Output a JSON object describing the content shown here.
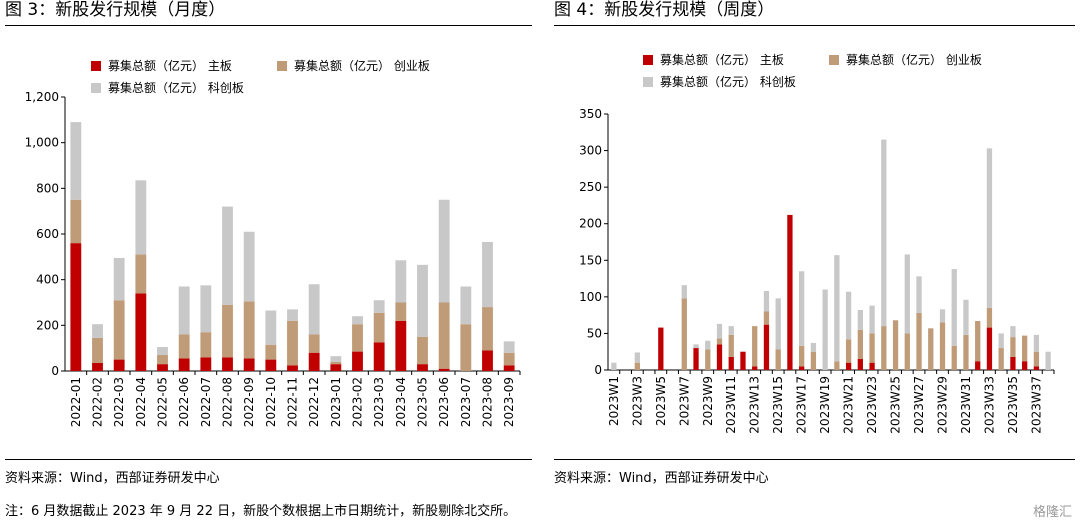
{
  "left": {
    "title": "图 3：新股发行规模（月度）",
    "source": "资料来源：Wind，西部证券研发中心"
  },
  "right": {
    "title": "图 4：新股发行规模（周度）",
    "source": "资料来源：Wind，西部证券研发中心"
  },
  "note": "注：6 月数据截止 2023 年 9 月 22 日，新股个数根据上市日期统计，新股剔除北交所。",
  "watermark": "格隆汇",
  "colors": {
    "main": "#C00000",
    "chinext": "#C09B77",
    "star": "#C8C8C8"
  },
  "chart_data": [
    {
      "type": "bar",
      "stacked": true,
      "categories": [
        "2022-01",
        "2022-02",
        "2022-03",
        "2022-04",
        "2022-05",
        "2022-06",
        "2022-07",
        "2022-08",
        "2022-09",
        "2022-10",
        "2022-11",
        "2022-12",
        "2023-01",
        "2023-02",
        "2023-03",
        "2023-04",
        "2023-05",
        "2023-06",
        "2023-07",
        "2023-08",
        "2023-09"
      ],
      "series": [
        {
          "name": "募集总额（亿元） 主板",
          "color": "#C00000",
          "values": [
            560,
            35,
            50,
            340,
            30,
            55,
            60,
            60,
            55,
            50,
            25,
            80,
            30,
            85,
            125,
            220,
            30,
            10,
            0,
            90,
            25
          ]
        },
        {
          "name": "募集总额（亿元） 创业板",
          "color": "#C09B77",
          "values": [
            190,
            110,
            260,
            170,
            40,
            105,
            110,
            230,
            250,
            65,
            195,
            80,
            10,
            120,
            130,
            80,
            120,
            290,
            205,
            190,
            55
          ]
        },
        {
          "name": "募集总额（亿元） 科创板",
          "color": "#C8C8C8",
          "values": [
            340,
            60,
            185,
            325,
            35,
            210,
            205,
            430,
            305,
            150,
            50,
            220,
            25,
            35,
            55,
            185,
            315,
            450,
            165,
            285,
            50
          ]
        }
      ],
      "ylim": [
        0,
        1200
      ],
      "yticks": [
        "0",
        "200",
        "400",
        "600",
        "800",
        "1,000",
        "1,200"
      ],
      "legend": "top"
    },
    {
      "type": "bar",
      "stacked": true,
      "categories": [
        "2023W1",
        "2023W2",
        "2023W3",
        "2023W4",
        "2023W5",
        "2023W6",
        "2023W7",
        "2023W8",
        "2023W9",
        "2023W10",
        "2023W11",
        "2023W12",
        "2023W13",
        "2023W14",
        "2023W15",
        "2023W16",
        "2023W17",
        "2023W18",
        "2023W19",
        "2023W20",
        "2023W21",
        "2023W22",
        "2023W23",
        "2023W24",
        "2023W25",
        "2023W26",
        "2023W27",
        "2023W28",
        "2023W29",
        "2023W30",
        "2023W31",
        "2023W32",
        "2023W33",
        "2023W34",
        "2023W35",
        "2023W36",
        "2023W37",
        "2023W38"
      ],
      "x_tick_labels": [
        "2023W1",
        "2023W3",
        "2023W5",
        "2023W7",
        "2023W9",
        "2023W11",
        "2023W13",
        "2023W15",
        "2023W17",
        "2023W19",
        "2023W21",
        "2023W23",
        "2023W25",
        "2023W27",
        "2023W29",
        "2023W31",
        "2023W33",
        "2023W35",
        "2023W37"
      ],
      "series": [
        {
          "name": "募集总额（亿元） 主板",
          "color": "#C00000",
          "values": [
            0,
            0,
            0,
            0,
            58,
            0,
            0,
            30,
            0,
            35,
            18,
            25,
            5,
            62,
            0,
            212,
            5,
            0,
            0,
            0,
            10,
            15,
            10,
            0,
            0,
            0,
            0,
            0,
            0,
            0,
            0,
            12,
            58,
            0,
            18,
            12,
            5,
            0
          ]
        },
        {
          "name": "募集总额（亿元） 创业板",
          "color": "#C09B77",
          "values": [
            0,
            0,
            10,
            0,
            0,
            0,
            98,
            0,
            28,
            8,
            30,
            0,
            55,
            18,
            28,
            0,
            28,
            25,
            0,
            12,
            32,
            40,
            40,
            60,
            68,
            50,
            78,
            57,
            65,
            33,
            48,
            55,
            27,
            30,
            27,
            35,
            20,
            0
          ]
        },
        {
          "name": "募集总额（亿元） 科创板",
          "color": "#C8C8C8",
          "values": [
            10,
            0,
            14,
            0,
            0,
            0,
            18,
            5,
            12,
            20,
            12,
            0,
            0,
            28,
            70,
            0,
            102,
            12,
            110,
            145,
            65,
            27,
            38,
            255,
            0,
            108,
            50,
            0,
            18,
            105,
            48,
            0,
            218,
            20,
            15,
            0,
            23,
            25
          ]
        }
      ],
      "ylim": [
        0,
        350
      ],
      "yticks": [
        "0",
        "50",
        "100",
        "150",
        "200",
        "250",
        "300",
        "350"
      ],
      "legend": "top"
    }
  ]
}
